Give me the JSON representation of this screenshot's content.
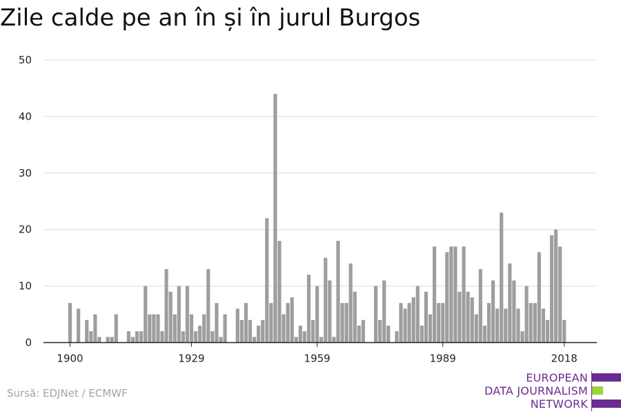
{
  "title": "Zile calde pe an în și în jurul Burgos",
  "source": "Sursă: EDJNet / ECMWF",
  "logo": {
    "lines": [
      "EUROPEAN",
      "DATA JOURNALISM",
      "NETWORK"
    ],
    "colors": {
      "text": "#6a2c91",
      "purple": "#6a2c91",
      "green": "#9bd53a"
    }
  },
  "colors": {
    "bar": "#9e9e9e",
    "grid": "#d9d9d9",
    "axis": "#222222",
    "text": "#222222"
  },
  "chart_data": {
    "type": "bar",
    "title": "Zile calde pe an în și în jurul Burgos",
    "xlabel": "",
    "ylabel": "",
    "ylim": [
      0,
      50
    ],
    "yticks": [
      0,
      10,
      20,
      30,
      40,
      50
    ],
    "xticks": [
      1900,
      1929,
      1959,
      1989,
      2018
    ],
    "grid": true,
    "x": [
      1900,
      1901,
      1902,
      1903,
      1904,
      1905,
      1906,
      1907,
      1908,
      1909,
      1910,
      1911,
      1912,
      1913,
      1914,
      1915,
      1916,
      1917,
      1918,
      1919,
      1920,
      1921,
      1922,
      1923,
      1924,
      1925,
      1926,
      1927,
      1928,
      1929,
      1930,
      1931,
      1932,
      1933,
      1934,
      1935,
      1936,
      1937,
      1938,
      1939,
      1940,
      1941,
      1942,
      1943,
      1944,
      1945,
      1946,
      1947,
      1948,
      1949,
      1950,
      1951,
      1952,
      1953,
      1954,
      1955,
      1956,
      1957,
      1958,
      1959,
      1960,
      1961,
      1962,
      1963,
      1964,
      1965,
      1966,
      1967,
      1968,
      1969,
      1970,
      1971,
      1972,
      1973,
      1974,
      1975,
      1976,
      1977,
      1978,
      1979,
      1980,
      1981,
      1982,
      1983,
      1984,
      1985,
      1986,
      1987,
      1988,
      1989,
      1990,
      1991,
      1992,
      1993,
      1994,
      1995,
      1996,
      1997,
      1998,
      1999,
      2000,
      2001,
      2002,
      2003,
      2004,
      2005,
      2006,
      2007,
      2008,
      2009,
      2010,
      2011,
      2012,
      2013,
      2014,
      2015,
      2016,
      2017,
      2018,
      2019
    ],
    "values": [
      7,
      0,
      6,
      0,
      4,
      2,
      5,
      1,
      0,
      1,
      1,
      5,
      0,
      0,
      2,
      1,
      2,
      2,
      10,
      5,
      5,
      5,
      2,
      13,
      9,
      5,
      10,
      2,
      10,
      5,
      2,
      3,
      5,
      13,
      2,
      7,
      1,
      5,
      0,
      0,
      6,
      4,
      7,
      4,
      1,
      3,
      4,
      22,
      7,
      44,
      18,
      5,
      7,
      8,
      1,
      3,
      2,
      12,
      4,
      10,
      1,
      15,
      11,
      1,
      18,
      7,
      7,
      14,
      9,
      3,
      4,
      0,
      0,
      10,
      4,
      11,
      3,
      0,
      2,
      7,
      6,
      7,
      8,
      10,
      3,
      9,
      5,
      17,
      7,
      7,
      16,
      17,
      17,
      9,
      17,
      9,
      8,
      5,
      13,
      3,
      7,
      11,
      6,
      23,
      6,
      14,
      11,
      6,
      2,
      10,
      7,
      7,
      16,
      6,
      4,
      19,
      20,
      17,
      4,
      0
    ]
  }
}
